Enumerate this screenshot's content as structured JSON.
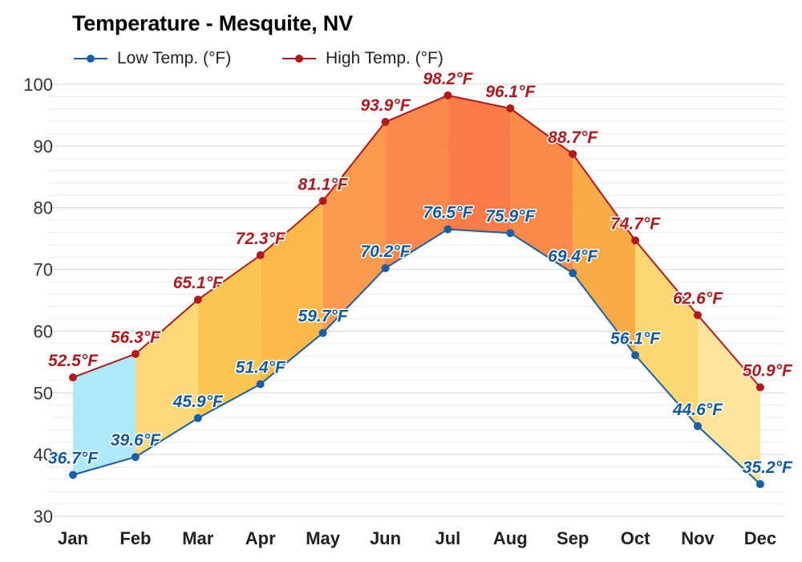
{
  "chart_data": {
    "type": "line",
    "title": "Temperature - Mesquite, NV",
    "categories": [
      "Jan",
      "Feb",
      "Mar",
      "Apr",
      "May",
      "Jun",
      "Jul",
      "Aug",
      "Sep",
      "Oct",
      "Nov",
      "Dec"
    ],
    "series": [
      {
        "name": "Low Temp. (°F)",
        "color": "#1a5fa6",
        "values": [
          36.7,
          39.6,
          45.9,
          51.4,
          59.7,
          70.2,
          76.5,
          75.9,
          69.4,
          56.1,
          44.6,
          35.2
        ],
        "labels": [
          "36.7°F",
          "39.6°F",
          "45.9°F",
          "51.4°F",
          "59.7°F",
          "70.2°F",
          "76.5°F",
          "75.9°F",
          "69.4°F",
          "56.1°F",
          "44.6°F",
          "35.2°F"
        ]
      },
      {
        "name": "High Temp. (°F)",
        "color": "#b2191d",
        "values": [
          52.5,
          56.3,
          65.1,
          72.3,
          81.1,
          93.9,
          98.2,
          96.1,
          88.7,
          74.7,
          62.6,
          50.9
        ],
        "labels": [
          "52.5°F",
          "56.3°F",
          "65.1°F",
          "72.3°F",
          "81.1°F",
          "93.9°F",
          "98.2°F",
          "96.1°F",
          "88.7°F",
          "74.7°F",
          "62.6°F",
          "50.9°F"
        ]
      }
    ],
    "ylim": [
      30,
      100
    ],
    "yticks": [
      "30",
      "40",
      "50",
      "60",
      "70",
      "80",
      "90",
      "100"
    ],
    "band_colors": [
      "#ade8fb",
      "#fdd97a",
      "#fcc653",
      "#fbb94a",
      "#fa9a4c",
      "#f98a4b",
      "#f97c48",
      "#fa8a4a",
      "#fbaa48",
      "#fdd872",
      "#fde39c",
      "#7fd9f6"
    ],
    "grid": true,
    "legend_position": "top-left"
  }
}
